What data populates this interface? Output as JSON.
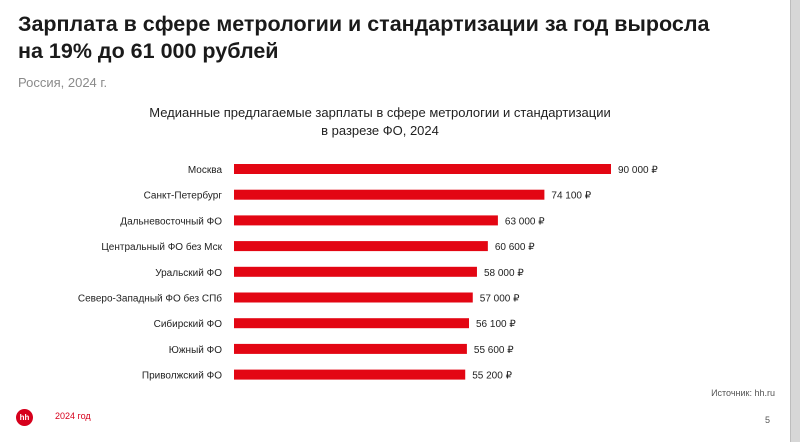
{
  "header": {
    "title": "Зарплата в сфере метрологии и стандартизации за год выросла на 19% до 61 000 рублей",
    "subtitle": "Россия, 2024 г."
  },
  "chart_data": {
    "type": "bar",
    "orientation": "horizontal",
    "title_lines": [
      "Медианные предлагаемые зарплаты в сфере метрологии и стандартизации",
      "в разрезе ФО, 2024"
    ],
    "categories": [
      "Москва",
      "Санкт-Петербург",
      "Дальневосточный ФО",
      "Центральный ФО без Мск",
      "Уральский ФО",
      "Северо-Западный ФО без СПб",
      "Сибирский ФО",
      "Южный ФО",
      "Приволжский ФО"
    ],
    "values": [
      90000,
      74100,
      63000,
      60600,
      58000,
      57000,
      56100,
      55600,
      55200
    ],
    "value_labels": [
      "90 000 ₽",
      "74 100 ₽",
      "63 000 ₽",
      "60 600 ₽",
      "58 000 ₽",
      "57 000 ₽",
      "56 100 ₽",
      "55 600 ₽",
      "55 200 ₽"
    ],
    "bar_color": "#e30613",
    "grid": false,
    "legend": "none"
  },
  "footer": {
    "source": "Источник: hh.ru",
    "logo_text": "hh",
    "year_label": "2024 год",
    "page_number": "5"
  },
  "colors": {
    "accent": "#d6001c",
    "bar": "#e30613"
  }
}
